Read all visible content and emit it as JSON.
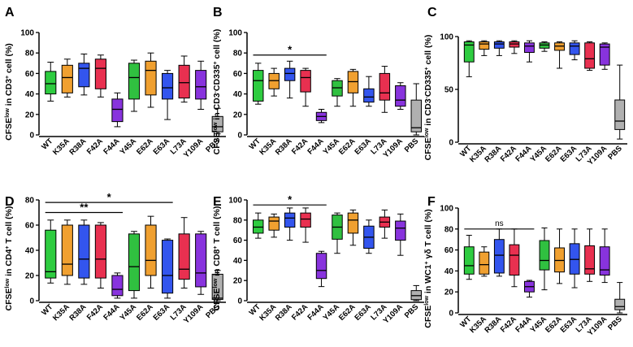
{
  "chart_data": [
    {
      "panel": "A",
      "type": "box",
      "ylabel_html": "CFSE<tspan baseline-shift='super' font-size='7'>low</tspan> in CD3<tspan baseline-shift='super' font-size='7'>+</tspan> cell (%)",
      "ylabel_text": "CFSElow in CD3+ cell (%)",
      "ylim": [
        0,
        100
      ],
      "yticks": [
        0,
        20,
        40,
        60,
        80,
        100
      ],
      "categories": [
        "WT",
        "K35A",
        "R38A",
        "F42A",
        "F44A",
        "Y45A",
        "E62A",
        "E63A",
        "L73A",
        "Y109A",
        "PBS"
      ],
      "boxes": [
        {
          "min": 33,
          "q1": 40,
          "median": 50,
          "q3": 62,
          "max": 71
        },
        {
          "min": 37,
          "q1": 41,
          "median": 56,
          "q3": 68,
          "max": 74
        },
        {
          "min": 39,
          "q1": 47,
          "median": 65,
          "q3": 70,
          "max": 79
        },
        {
          "min": 37,
          "q1": 45,
          "median": 65,
          "q3": 74,
          "max": 78
        },
        {
          "min": 8,
          "q1": 13,
          "median": 25,
          "q3": 35,
          "max": 41
        },
        {
          "min": 23,
          "q1": 35,
          "median": 56,
          "q3": 70,
          "max": 73
        },
        {
          "min": 27,
          "q1": 39,
          "median": 63,
          "q3": 72,
          "max": 80
        },
        {
          "min": 15,
          "q1": 35,
          "median": 46,
          "q3": 60,
          "max": 63
        },
        {
          "min": 32,
          "q1": 36,
          "median": 51,
          "q3": 68,
          "max": 77
        },
        {
          "min": 25,
          "q1": 35,
          "median": 47,
          "q3": 63,
          "max": 72
        },
        {
          "min": 1,
          "q1": 3,
          "median": 8,
          "q3": 18,
          "max": 26
        }
      ],
      "significance": []
    },
    {
      "panel": "B",
      "type": "box",
      "ylabel_html": "CFSE<tspan baseline-shift='super' font-size='7'>low</tspan> in CD3<tspan baseline-shift='super' font-size='7'>-</tspan>CD335<tspan baseline-shift='super' font-size='7'>+</tspan> cell (%)",
      "ylabel_text": "CFSElow in CD3-CD335+ cell (%)",
      "ylim": [
        0,
        100
      ],
      "yticks": [
        0,
        20,
        40,
        60,
        80,
        100
      ],
      "categories": [
        "WT",
        "K35A",
        "R38A",
        "F42A",
        "F44A",
        "Y45A",
        "E62A",
        "E63A",
        "L73A",
        "Y109A",
        "PBS"
      ],
      "boxes": [
        {
          "min": 30,
          "q1": 33,
          "median": 53,
          "q3": 63,
          "max": 70
        },
        {
          "min": 38,
          "q1": 45,
          "median": 53,
          "q3": 60,
          "max": 65
        },
        {
          "min": 36,
          "q1": 53,
          "median": 60,
          "q3": 65,
          "max": 72
        },
        {
          "min": 28,
          "q1": 42,
          "median": 56,
          "q3": 63,
          "max": 65
        },
        {
          "min": 12,
          "q1": 14,
          "median": 18,
          "q3": 22,
          "max": 25
        },
        {
          "min": 28,
          "q1": 38,
          "median": 46,
          "q3": 53,
          "max": 55
        },
        {
          "min": 28,
          "q1": 41,
          "median": 52,
          "q3": 62,
          "max": 64
        },
        {
          "min": 28,
          "q1": 32,
          "median": 37,
          "q3": 45,
          "max": 57
        },
        {
          "min": 22,
          "q1": 34,
          "median": 41,
          "q3": 60,
          "max": 67
        },
        {
          "min": 25,
          "q1": 28,
          "median": 34,
          "q3": 48,
          "max": 51
        },
        {
          "min": 0,
          "q1": 3,
          "median": 7,
          "q3": 34,
          "max": 50
        }
      ],
      "significance": [
        {
          "from": 0,
          "to": 4,
          "label": "*",
          "y": 78
        }
      ]
    },
    {
      "panel": "C",
      "type": "box",
      "ylabel_html": "CFSE<tspan baseline-shift='super' font-size='7'>low</tspan> in CD3<tspan baseline-shift='super' font-size='7'>-</tspan>CD335<tspan baseline-shift='super' font-size='7'>+</tspan> cell (%)",
      "ylabel_text": "CFSElow in CD3-CD335+ cell (%)",
      "ylim": [
        0,
        100
      ],
      "yticks": [
        0,
        50,
        100
      ],
      "categories": [
        "WT",
        "K35A",
        "R38A",
        "F42A",
        "F44A",
        "Y45A",
        "E62A",
        "E63A",
        "L73A",
        "Y109A",
        "PBS"
      ],
      "boxes": [
        {
          "min": 62,
          "q1": 76,
          "median": 92,
          "q3": 95,
          "max": 96
        },
        {
          "min": 82,
          "q1": 88,
          "median": 93,
          "q3": 95,
          "max": 96
        },
        {
          "min": 82,
          "q1": 89,
          "median": 93,
          "q3": 95,
          "max": 96
        },
        {
          "min": 84,
          "q1": 90,
          "median": 93,
          "q3": 95,
          "max": 96
        },
        {
          "min": 76,
          "q1": 85,
          "median": 91,
          "q3": 94,
          "max": 96
        },
        {
          "min": 86,
          "q1": 89,
          "median": 92,
          "q3": 94,
          "max": 95
        },
        {
          "min": 70,
          "q1": 87,
          "median": 91,
          "q3": 94,
          "max": 95
        },
        {
          "min": 78,
          "q1": 83,
          "median": 91,
          "q3": 94,
          "max": 96
        },
        {
          "min": 68,
          "q1": 70,
          "median": 79,
          "q3": 94,
          "max": 95
        },
        {
          "min": 69,
          "q1": 73,
          "median": 90,
          "q3": 93,
          "max": 94
        },
        {
          "min": 3,
          "q1": 12,
          "median": 20,
          "q3": 40,
          "max": 73
        }
      ],
      "significance": []
    },
    {
      "panel": "D",
      "type": "box",
      "ylabel_html": "CFSE<tspan baseline-shift='super' font-size='7'>low</tspan> in CD4<tspan baseline-shift='super' font-size='7'>+</tspan> T cell (%)",
      "ylabel_text": "CFSElow in CD4+ T cell (%)",
      "ylim": [
        0,
        80
      ],
      "yticks": [
        0,
        20,
        40,
        60,
        80
      ],
      "categories": [
        "WT",
        "K35A",
        "R38A",
        "F42A",
        "F44A",
        "Y45A",
        "E62A",
        "E63A",
        "L73A",
        "Y109A",
        "PBS"
      ],
      "boxes": [
        {
          "min": 14,
          "q1": 18,
          "median": 23,
          "q3": 56,
          "max": 64
        },
        {
          "min": 13,
          "q1": 20,
          "median": 29,
          "q3": 60,
          "max": 64
        },
        {
          "min": 13,
          "q1": 18,
          "median": 33,
          "q3": 60,
          "max": 64
        },
        {
          "min": 10,
          "q1": 18,
          "median": 33,
          "q3": 60,
          "max": 62
        },
        {
          "min": 2,
          "q1": 4,
          "median": 9,
          "q3": 20,
          "max": 22
        },
        {
          "min": 2,
          "q1": 8,
          "median": 27,
          "q3": 53,
          "max": 55
        },
        {
          "min": 10,
          "q1": 20,
          "median": 32,
          "q3": 60,
          "max": 67
        },
        {
          "min": 2,
          "q1": 6,
          "median": 20,
          "q3": 48,
          "max": 49
        },
        {
          "min": 10,
          "q1": 17,
          "median": 25,
          "q3": 53,
          "max": 66
        },
        {
          "min": 5,
          "q1": 11,
          "median": 22,
          "q3": 53,
          "max": 55
        },
        {
          "min": 0,
          "q1": 1,
          "median": 2,
          "q3": 21,
          "max": 24
        }
      ],
      "significance": [
        {
          "from": 0,
          "to": 4,
          "label": "**",
          "y": 70
        },
        {
          "from": 0,
          "to": 7,
          "label": "*",
          "y": 78
        }
      ]
    },
    {
      "panel": "E",
      "type": "box",
      "ylabel_html": "CFSE<tspan baseline-shift='super' font-size='7'>low</tspan> in CD8<tspan baseline-shift='super' font-size='7'>+</tspan> T cell (%)",
      "ylabel_text": "CFSElow in CD8+ T cell (%)",
      "ylim": [
        0,
        100
      ],
      "yticks": [
        0,
        20,
        40,
        60,
        80,
        100
      ],
      "categories": [
        "WT",
        "K35A",
        "R38A",
        "F42A",
        "F44A",
        "Y45A",
        "E62A",
        "E63A",
        "L73A",
        "Y109A",
        "PBS"
      ],
      "boxes": [
        {
          "min": 62,
          "q1": 67,
          "median": 73,
          "q3": 80,
          "max": 87
        },
        {
          "min": 63,
          "q1": 70,
          "median": 79,
          "q3": 83,
          "max": 86
        },
        {
          "min": 60,
          "q1": 73,
          "median": 82,
          "q3": 87,
          "max": 92
        },
        {
          "min": 58,
          "q1": 73,
          "median": 81,
          "q3": 87,
          "max": 92
        },
        {
          "min": 14,
          "q1": 22,
          "median": 30,
          "q3": 47,
          "max": 49
        },
        {
          "min": 47,
          "q1": 61,
          "median": 73,
          "q3": 85,
          "max": 87
        },
        {
          "min": 55,
          "q1": 67,
          "median": 80,
          "q3": 87,
          "max": 90
        },
        {
          "min": 47,
          "q1": 52,
          "median": 63,
          "q3": 74,
          "max": 80
        },
        {
          "min": 62,
          "q1": 73,
          "median": 78,
          "q3": 83,
          "max": 90
        },
        {
          "min": 45,
          "q1": 60,
          "median": 72,
          "q3": 79,
          "max": 86
        },
        {
          "min": 0,
          "q1": 1,
          "median": 5,
          "q3": 10,
          "max": 15
        }
      ],
      "significance": [
        {
          "from": 0,
          "to": 4,
          "label": "*",
          "y": 95
        }
      ]
    },
    {
      "panel": "F",
      "type": "box",
      "ylabel_html": "CFSE<tspan baseline-shift='super' font-size='7'>low</tspan> in WC1<tspan baseline-shift='super' font-size='7'>+</tspan> γδ T cell (%)",
      "ylabel_text": "CFSElow in WC1+ γδ T cell (%)",
      "ylim": [
        0,
        100
      ],
      "yticks": [
        0,
        20,
        40,
        60,
        80,
        100
      ],
      "categories": [
        "WT",
        "K35A",
        "R38A",
        "F42A",
        "F44A",
        "Y45A",
        "E62A",
        "E63A",
        "L73A",
        "Y109A",
        "PBS"
      ],
      "boxes": [
        {
          "min": 32,
          "q1": 37,
          "median": 45,
          "q3": 63,
          "max": 74
        },
        {
          "min": 35,
          "q1": 37,
          "median": 46,
          "q3": 58,
          "max": 63
        },
        {
          "min": 35,
          "q1": 38,
          "median": 55,
          "q3": 70,
          "max": 80
        },
        {
          "min": 25,
          "q1": 36,
          "median": 55,
          "q3": 65,
          "max": 80
        },
        {
          "min": 15,
          "q1": 20,
          "median": 25,
          "q3": 30,
          "max": 31
        },
        {
          "min": 22,
          "q1": 41,
          "median": 50,
          "q3": 69,
          "max": 81
        },
        {
          "min": 28,
          "q1": 39,
          "median": 50,
          "q3": 62,
          "max": 80
        },
        {
          "min": 24,
          "q1": 37,
          "median": 51,
          "q3": 66,
          "max": 80
        },
        {
          "min": 30,
          "q1": 37,
          "median": 42,
          "q3": 64,
          "max": 80
        },
        {
          "min": 29,
          "q1": 36,
          "median": 41,
          "q3": 63,
          "max": 80
        },
        {
          "min": 0,
          "q1": 3,
          "median": 6,
          "q3": 13,
          "max": 29
        }
      ],
      "significance": [
        {
          "from": 0,
          "to": 4,
          "label": "ns",
          "y": 80
        }
      ]
    }
  ],
  "colors": [
    "#2ecc40",
    "#f0a030",
    "#3355ee",
    "#e83050",
    "#8833dd",
    "#30c040",
    "#f0a030",
    "#3355ee",
    "#e83050",
    "#8833dd",
    "#b0b0b0"
  ]
}
